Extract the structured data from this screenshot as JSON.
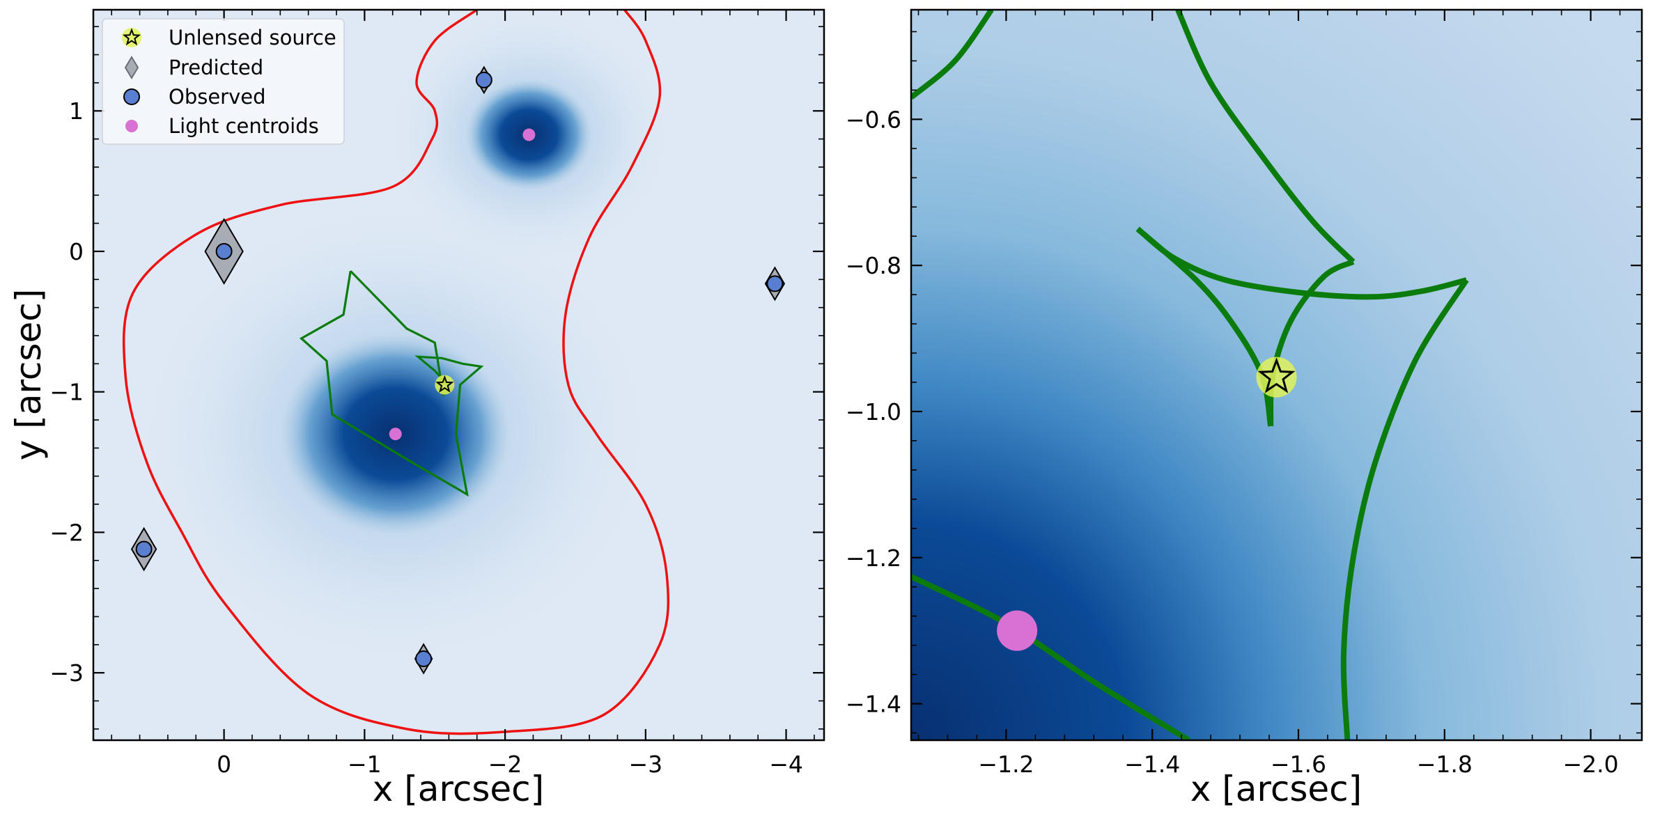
{
  "colors": {
    "critical_curve": "#ee1111",
    "caustic": "#0b7c0b",
    "observed_fill": "#5b7fd0",
    "predicted_fill": "#a8acb4",
    "light_centroid": "#d971d4",
    "source_fill": "#e0f25a",
    "axes_bg": "#dfe9f5",
    "lens_dark": "#083070"
  },
  "chart_data": [
    {
      "type": "scatter",
      "panel": "left",
      "xlabel": "x [arcsec]",
      "ylabel": "y [arcsec]",
      "xlim": [
        0.93,
        -4.27
      ],
      "ylim": [
        -3.48,
        1.72
      ],
      "x_ticks": [
        0,
        -1,
        -2,
        -3,
        -4
      ],
      "y_ticks": [
        1,
        0,
        -1,
        -2,
        -3
      ],
      "x_tick_labels": [
        "0",
        "−1",
        "−2",
        "−3",
        "−4"
      ],
      "y_tick_labels": [
        "1",
        "0",
        "−1",
        "−2",
        "−3"
      ],
      "legend": {
        "position": "top-left",
        "entries": [
          {
            "key": "source",
            "label": "Unlensed source",
            "marker": "star"
          },
          {
            "key": "predicted",
            "label": "Predicted",
            "marker": "diamond"
          },
          {
            "key": "observed",
            "label": "Observed",
            "marker": "circle"
          },
          {
            "key": "centroid",
            "label": "Light centroids",
            "marker": "small-circle"
          }
        ]
      },
      "unlensed_source": [
        {
          "x": -1.57,
          "y": -0.95
        }
      ],
      "predicted_images": [
        {
          "x": 0.0,
          "y": 0.0,
          "size": 1.0
        },
        {
          "x": -1.85,
          "y": 1.22,
          "size": 0.4
        },
        {
          "x": -3.92,
          "y": -0.23,
          "size": 0.5
        },
        {
          "x": 0.57,
          "y": -2.12,
          "size": 0.65
        },
        {
          "x": -1.42,
          "y": -2.9,
          "size": 0.45
        }
      ],
      "observed_images": [
        {
          "x": 0.0,
          "y": 0.0
        },
        {
          "x": -1.85,
          "y": 1.22
        },
        {
          "x": -3.92,
          "y": -0.23
        },
        {
          "x": 0.57,
          "y": -2.12
        },
        {
          "x": -1.42,
          "y": -2.9
        }
      ],
      "light_centroids": [
        {
          "x": -1.22,
          "y": -1.3
        },
        {
          "x": -2.17,
          "y": 0.83
        }
      ],
      "lens_galaxies": [
        {
          "x": -1.22,
          "y": -1.3,
          "scale": 1.0
        },
        {
          "x": -2.17,
          "y": 0.83,
          "scale": 0.55
        }
      ],
      "critical_curve": [
        [
          -1.8,
          1.72
        ],
        [
          -1.5,
          1.5
        ],
        [
          -1.37,
          1.2
        ],
        [
          -1.5,
          1.0
        ],
        [
          -1.48,
          0.8
        ],
        [
          -1.2,
          0.46
        ],
        [
          -0.4,
          0.33
        ],
        [
          0.2,
          0.12
        ],
        [
          0.65,
          -0.3
        ],
        [
          0.7,
          -0.9
        ],
        [
          0.55,
          -1.5
        ],
        [
          0.3,
          -2.0
        ],
        [
          0.0,
          -2.5
        ],
        [
          -0.6,
          -3.15
        ],
        [
          -1.3,
          -3.4
        ],
        [
          -2.0,
          -3.42
        ],
        [
          -2.7,
          -3.3
        ],
        [
          -3.1,
          -2.8
        ],
        [
          -3.15,
          -2.3
        ],
        [
          -3.0,
          -1.8
        ],
        [
          -2.65,
          -1.3
        ],
        [
          -2.45,
          -0.95
        ],
        [
          -2.43,
          -0.45
        ],
        [
          -2.6,
          0.1
        ],
        [
          -2.9,
          0.6
        ],
        [
          -3.1,
          1.1
        ],
        [
          -3.0,
          1.5
        ],
        [
          -2.85,
          1.72
        ]
      ],
      "caustic": [
        [
          -0.9,
          -0.14
        ],
        [
          -0.85,
          -0.45
        ],
        [
          -0.55,
          -0.62
        ],
        [
          -0.73,
          -0.78
        ],
        [
          -0.77,
          -1.16
        ],
        [
          -1.3,
          -1.48
        ],
        [
          -1.73,
          -1.73
        ],
        [
          -1.65,
          -1.3
        ],
        [
          -1.68,
          -0.95
        ],
        [
          -1.83,
          -0.82
        ],
        [
          -1.7,
          -0.8
        ],
        [
          -1.55,
          -0.76
        ],
        [
          -1.38,
          -0.75
        ],
        [
          -1.5,
          -0.85
        ],
        [
          -1.62,
          -0.98
        ],
        [
          -1.56,
          -1.02
        ],
        [
          -1.5,
          -0.65
        ],
        [
          -1.3,
          -0.55
        ],
        [
          -0.9,
          -0.14
        ]
      ]
    },
    {
      "type": "scatter",
      "panel": "right",
      "xlabel": "x [arcsec]",
      "ylabel": "",
      "xlim": [
        -1.07,
        -2.07
      ],
      "ylim": [
        -1.45,
        -0.45
      ],
      "x_ticks": [
        -1.2,
        -1.4,
        -1.6,
        -1.8,
        -2.0
      ],
      "y_ticks": [
        -0.6,
        -0.8,
        -1.0,
        -1.2,
        -1.4
      ],
      "x_tick_labels": [
        "−1.2",
        "−1.4",
        "−1.6",
        "−1.8",
        "−2.0"
      ],
      "y_tick_labels": [
        "−0.6",
        "−0.8",
        "−1.0",
        "−1.2",
        "−1.4"
      ],
      "unlensed_source": [
        {
          "x": -1.57,
          "y": -0.953
        }
      ],
      "light_centroids": [
        {
          "x": -1.215,
          "y": -1.3
        }
      ],
      "caustic_segments": [
        [
          [
            -1.07,
            -0.57
          ],
          [
            -1.13,
            -0.52
          ],
          [
            -1.18,
            -0.45
          ]
        ],
        [
          [
            -1.38,
            -0.75
          ],
          [
            -1.43,
            -0.79
          ],
          [
            -1.5,
            -0.82
          ],
          [
            -1.6,
            -0.837
          ],
          [
            -1.7,
            -0.843
          ],
          [
            -1.77,
            -0.835
          ],
          [
            -1.83,
            -0.82
          ]
        ],
        [
          [
            -1.38,
            -0.75
          ],
          [
            -1.46,
            -0.82
          ],
          [
            -1.51,
            -0.88
          ],
          [
            -1.55,
            -0.95
          ],
          [
            -1.562,
            -1.02
          ]
        ],
        [
          [
            -1.562,
            -1.02
          ],
          [
            -1.565,
            -0.95
          ],
          [
            -1.59,
            -0.875
          ],
          [
            -1.635,
            -0.815
          ],
          [
            -1.675,
            -0.795
          ]
        ],
        [
          [
            -1.675,
            -0.795
          ],
          [
            -1.62,
            -0.74
          ],
          [
            -1.55,
            -0.65
          ],
          [
            -1.48,
            -0.55
          ],
          [
            -1.435,
            -0.45
          ]
        ],
        [
          [
            -1.83,
            -0.82
          ],
          [
            -1.76,
            -0.93
          ],
          [
            -1.705,
            -1.07
          ],
          [
            -1.675,
            -1.2
          ],
          [
            -1.662,
            -1.33
          ],
          [
            -1.667,
            -1.45
          ]
        ],
        [
          [
            -1.07,
            -1.226
          ],
          [
            -1.2,
            -1.29
          ],
          [
            -1.32,
            -1.37
          ],
          [
            -1.45,
            -1.45
          ]
        ]
      ]
    }
  ]
}
